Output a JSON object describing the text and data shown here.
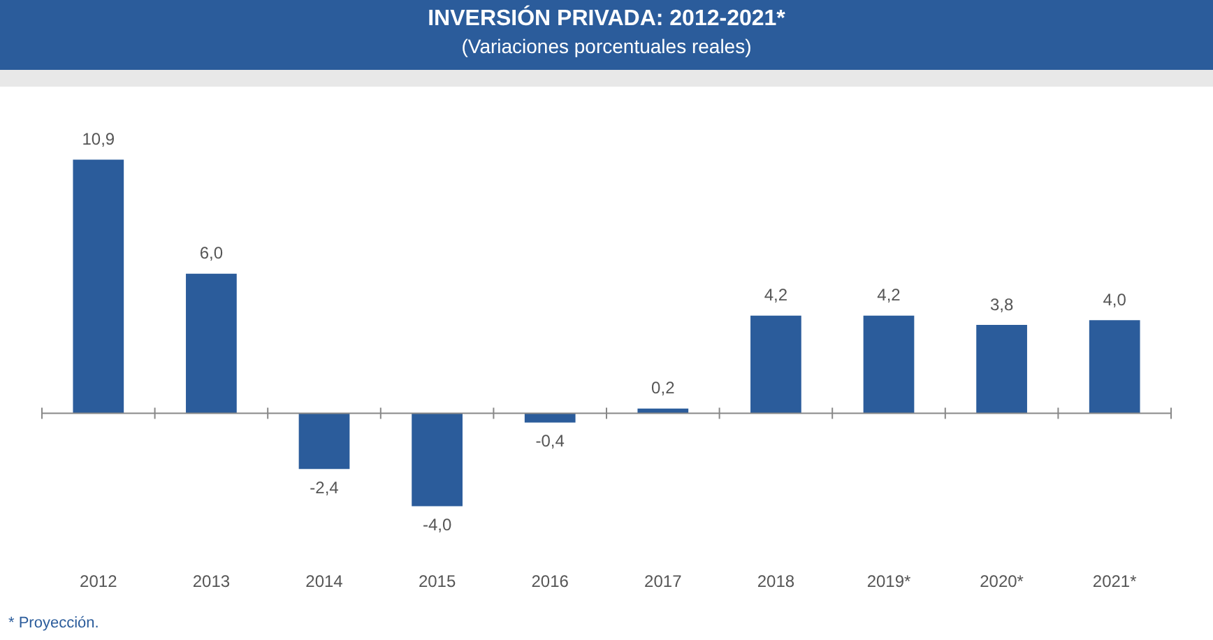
{
  "chart_data": {
    "type": "bar",
    "title": "INVERSIÓN PRIVADA: 2012-2021*",
    "subtitle": "(Variaciones porcentuales reales)",
    "categories": [
      "2012",
      "2013",
      "2014",
      "2015",
      "2016",
      "2017",
      "2018",
      "2019*",
      "2020*",
      "2021*"
    ],
    "values": [
      10.9,
      6.0,
      -2.4,
      -4.0,
      -0.4,
      0.2,
      4.2,
      4.2,
      3.8,
      4.0
    ],
    "value_labels": [
      "10,9",
      "6,0",
      "-2,4",
      "-4,0",
      "-0,4",
      "0,2",
      "4,2",
      "4,2",
      "3,8",
      "4,0"
    ],
    "color": "#2b5c9b",
    "grid": false,
    "legend": false,
    "tick_labels": "x",
    "annotations": [
      "* Proyección."
    ]
  }
}
